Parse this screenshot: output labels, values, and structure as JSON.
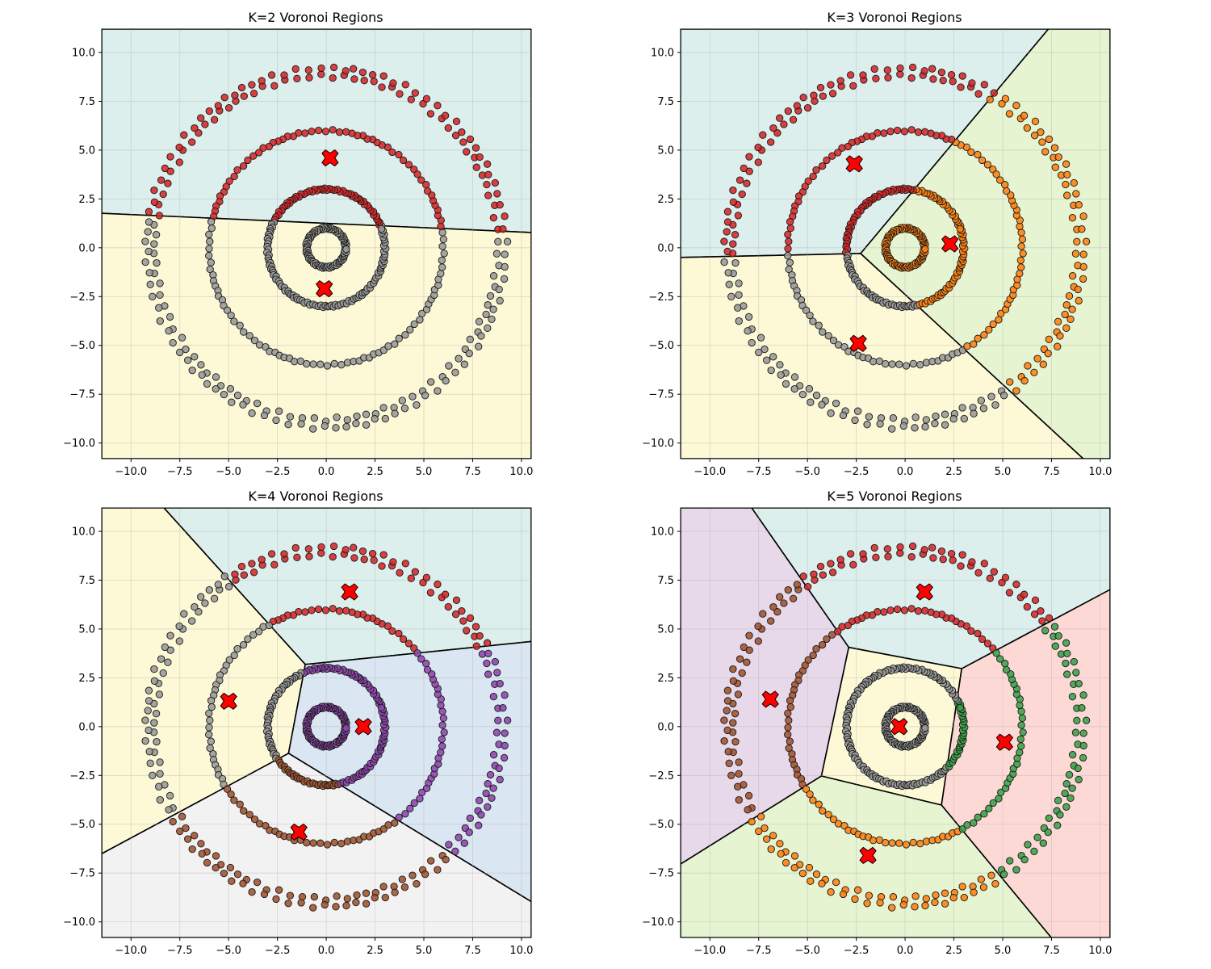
{
  "chart_data": [
    {
      "type": "scatter",
      "title": "K=2 Voronoi Regions",
      "xlim": [
        -11.5,
        10.5
      ],
      "ylim": [
        -10.8,
        11.2
      ],
      "xticks": [
        -10.0,
        -7.5,
        -5.0,
        -2.5,
        0.0,
        2.5,
        5.0,
        7.5,
        10.0
      ],
      "yticks": [
        -10.0,
        -7.5,
        -5.0,
        -2.5,
        0.0,
        2.5,
        5.0,
        7.5,
        10.0
      ],
      "grid": true,
      "rings": [
        1.0,
        3.0,
        6.0,
        8.8,
        9.2
      ],
      "centroids": [
        [
          0.2,
          4.6
        ],
        [
          -0.1,
          -2.1
        ]
      ],
      "clusters": [
        {
          "name": "0",
          "color": "#d62728",
          "region": "#dcefec"
        },
        {
          "name": "1",
          "color": "#999999",
          "region": "#fdf8d5"
        }
      ]
    },
    {
      "type": "scatter",
      "title": "K=3 Voronoi Regions",
      "xlim": [
        -11.5,
        10.5
      ],
      "ylim": [
        -10.8,
        11.2
      ],
      "xticks": [
        -10.0,
        -7.5,
        -5.0,
        -2.5,
        0.0,
        2.5,
        5.0,
        7.5,
        10.0
      ],
      "yticks": [
        -10.0,
        -7.5,
        -5.0,
        -2.5,
        0.0,
        2.5,
        5.0,
        7.5,
        10.0
      ],
      "grid": true,
      "rings": [
        1.0,
        3.0,
        6.0,
        8.8,
        9.2
      ],
      "centroids": [
        [
          -2.6,
          4.3
        ],
        [
          2.3,
          0.2
        ],
        [
          -2.4,
          -4.9
        ]
      ],
      "clusters": [
        {
          "name": "0",
          "color": "#d62728",
          "region": "#dcefec"
        },
        {
          "name": "1",
          "color": "#ff7f0e",
          "region": "#e6f4d2"
        },
        {
          "name": "2",
          "color": "#999999",
          "region": "#fdf8d5"
        }
      ]
    },
    {
      "type": "scatter",
      "title": "K=4 Voronoi Regions",
      "xlim": [
        -11.5,
        10.5
      ],
      "ylim": [
        -10.8,
        11.2
      ],
      "xticks": [
        -10.0,
        -7.5,
        -5.0,
        -2.5,
        0.0,
        2.5,
        5.0,
        7.5,
        10.0
      ],
      "yticks": [
        -10.0,
        -7.5,
        -5.0,
        -2.5,
        0.0,
        2.5,
        5.0,
        7.5,
        10.0
      ],
      "grid": true,
      "rings": [
        1.0,
        3.0,
        6.0,
        8.8,
        9.2
      ],
      "centroids": [
        [
          1.2,
          6.9
        ],
        [
          -5.0,
          1.3
        ],
        [
          1.9,
          0.0
        ],
        [
          -1.4,
          -5.4
        ]
      ],
      "clusters": [
        {
          "name": "0",
          "color": "#d62728",
          "region": "#dcefec"
        },
        {
          "name": "1",
          "color": "#999999",
          "region": "#fdf8d5"
        },
        {
          "name": "2",
          "color": "#8e44ad",
          "region": "#dae6f1"
        },
        {
          "name": "3",
          "color": "#a0522d",
          "region": "#f2f2f2"
        }
      ]
    },
    {
      "type": "scatter",
      "title": "K=5 Voronoi Regions",
      "xlim": [
        -11.5,
        10.5
      ],
      "ylim": [
        -10.8,
        11.2
      ],
      "xticks": [
        -10.0,
        -7.5,
        -5.0,
        -2.5,
        0.0,
        2.5,
        5.0,
        7.5,
        10.0
      ],
      "yticks": [
        -10.0,
        -7.5,
        -5.0,
        -2.5,
        0.0,
        2.5,
        5.0,
        7.5,
        10.0
      ],
      "grid": true,
      "rings": [
        1.0,
        3.0,
        6.0,
        8.8,
        9.2
      ],
      "centroids": [
        [
          1.0,
          6.9
        ],
        [
          -6.9,
          1.4
        ],
        [
          -0.3,
          0.0
        ],
        [
          5.1,
          -0.8
        ],
        [
          -1.9,
          -6.6
        ]
      ],
      "clusters": [
        {
          "name": "0",
          "color": "#d62728",
          "region": "#dcefec"
        },
        {
          "name": "1",
          "color": "#a0522d",
          "region": "#e8d9ea"
        },
        {
          "name": "2",
          "color": "#999999",
          "region": "#fdf8d5"
        },
        {
          "name": "3",
          "color": "#3aa048",
          "region": "#fdd9d6"
        },
        {
          "name": "4",
          "color": "#ff7f0e",
          "region": "#e6f4d2"
        }
      ]
    }
  ]
}
